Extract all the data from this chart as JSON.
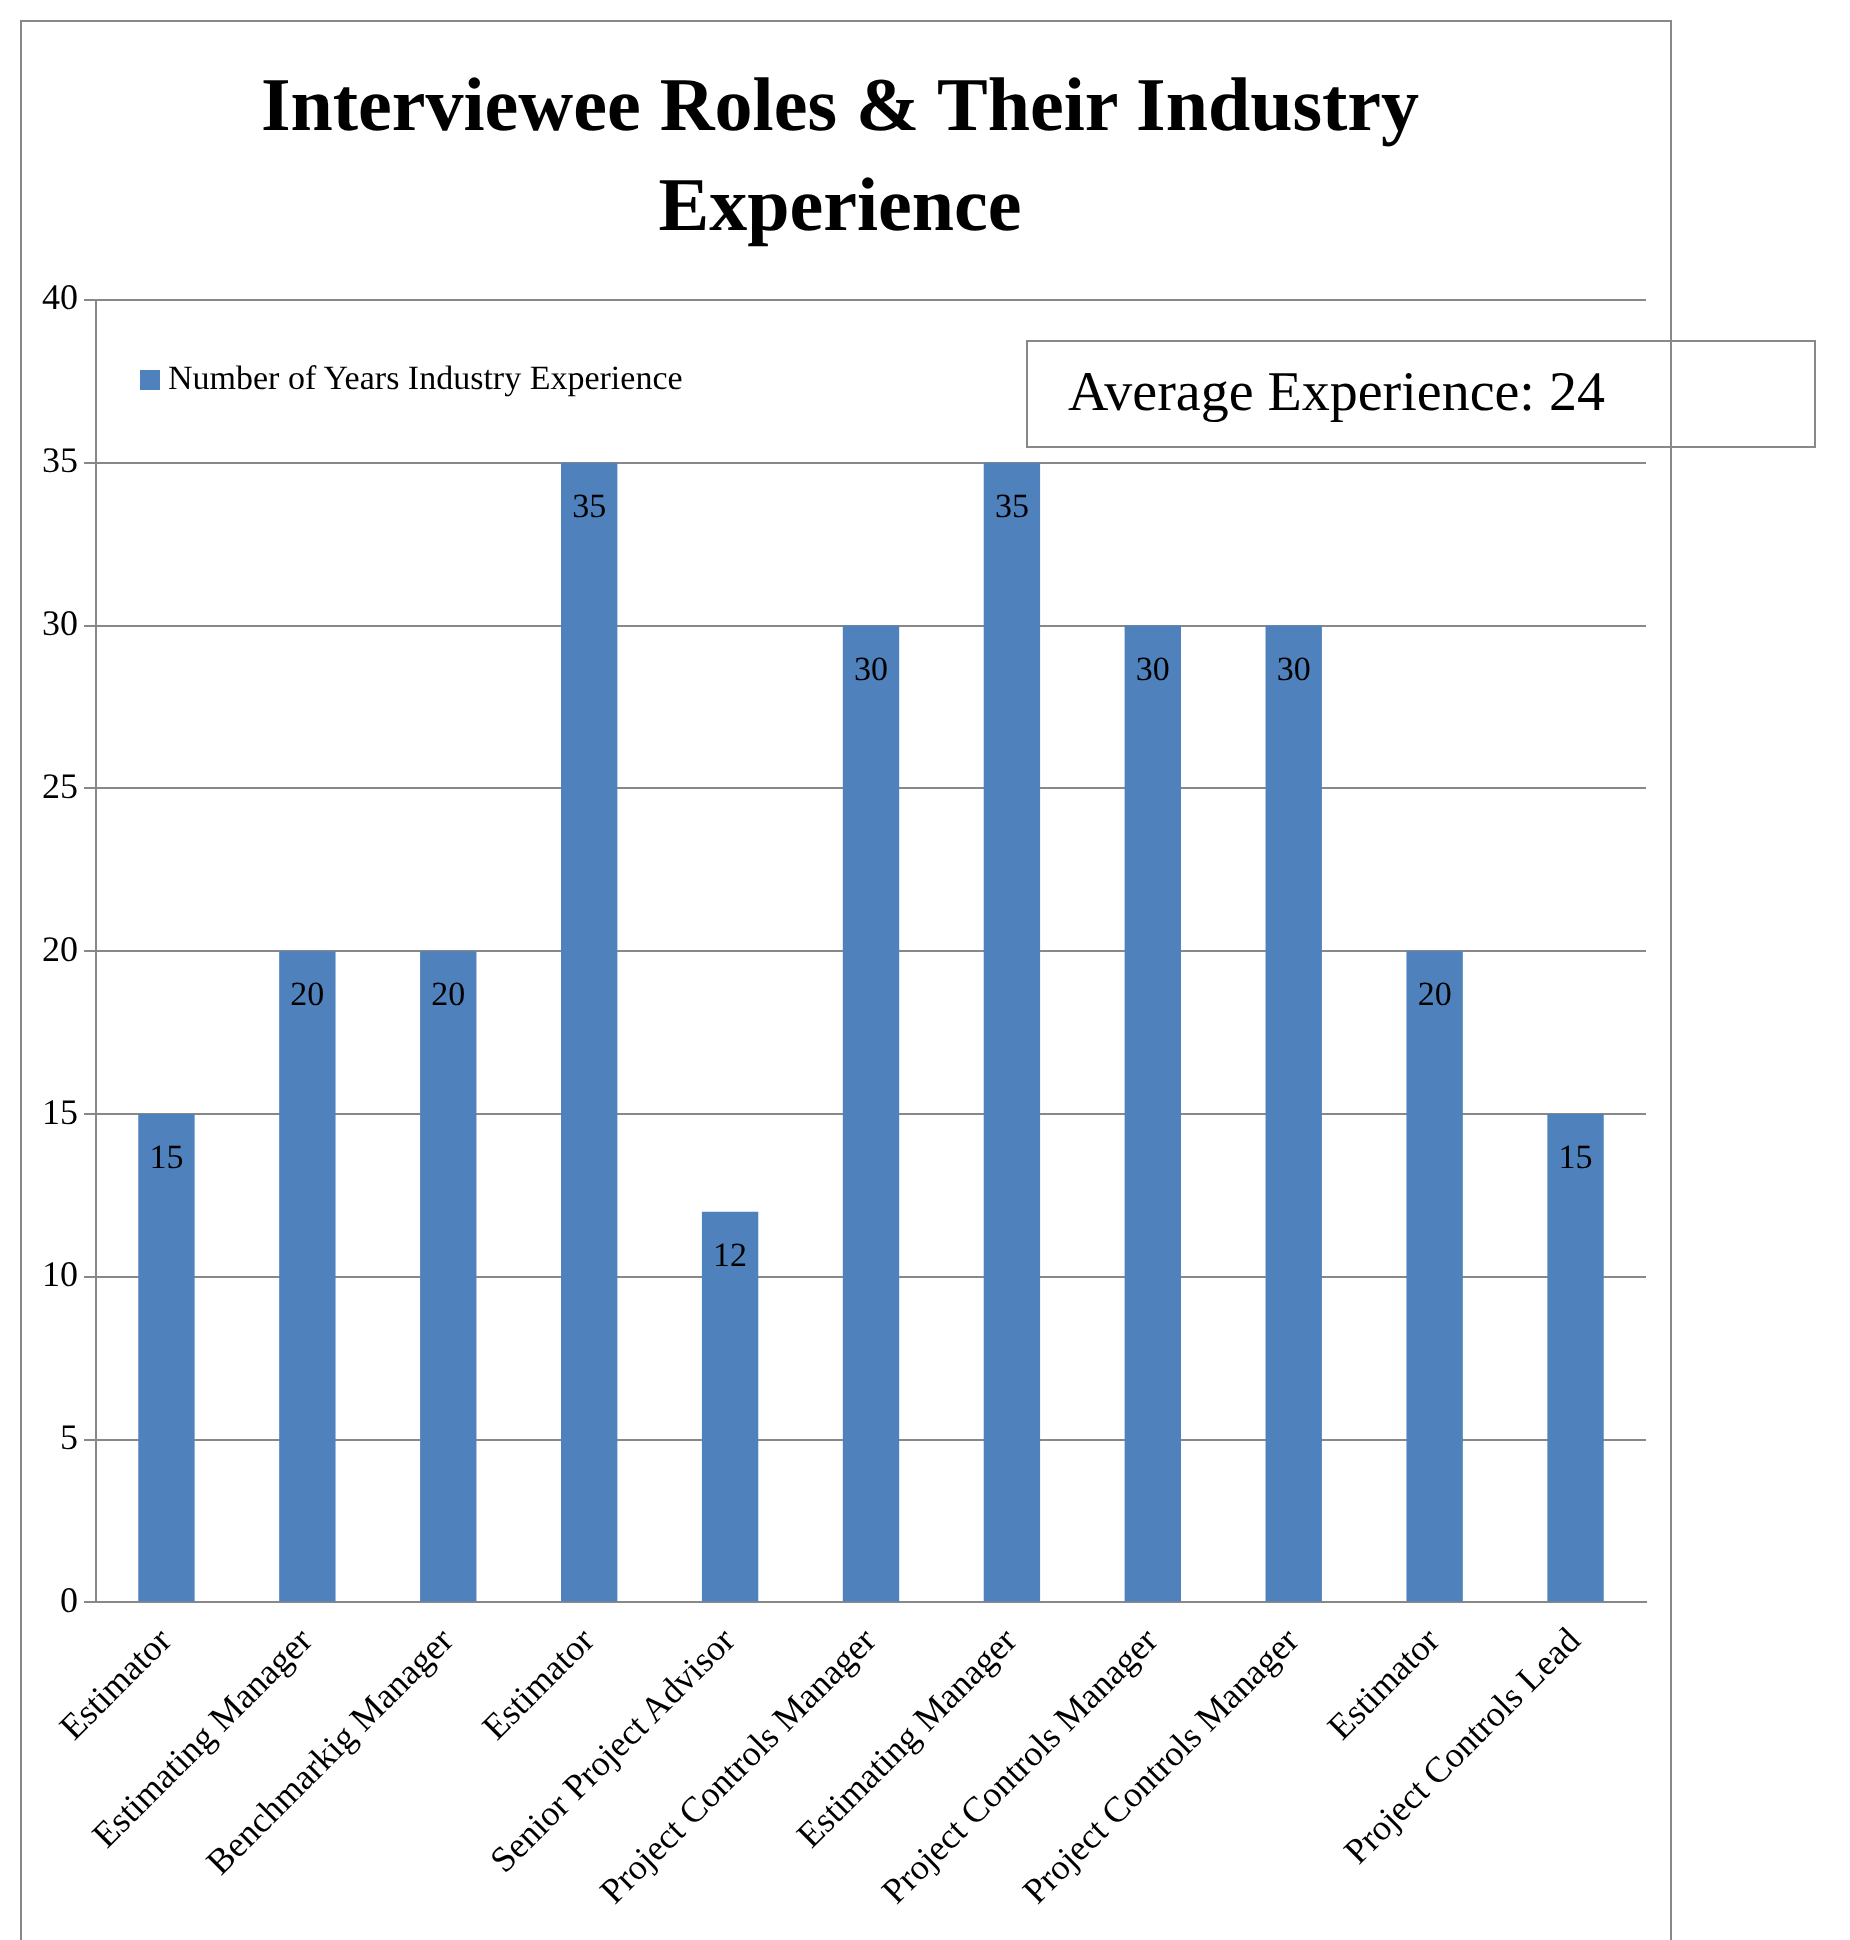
{
  "chart_data": {
    "type": "bar",
    "title": "Interviewee Roles & Their Industry Experience",
    "categories": [
      "Estimator",
      "Estimating Manager",
      "Benchmarkig Manager",
      "Estimator",
      "Senior Project Advisor",
      "Project Controls Manager",
      "Estimating Manager",
      "Project Controls Manager",
      "Project Controls Manager",
      "Estimator",
      "Project Controls Lead"
    ],
    "series": [
      {
        "name": "Number of Years Industry Experience",
        "color": "#4f81bd",
        "values": [
          15,
          20,
          20,
          35,
          12,
          30,
          35,
          30,
          30,
          20,
          15
        ]
      }
    ],
    "ylim": [
      0,
      40
    ],
    "yticks": [
      0,
      5,
      10,
      15,
      20,
      25,
      30,
      35,
      40
    ],
    "grid": "y",
    "legend": "top left",
    "data_labels": true,
    "annotations": [
      "Average Experience:  24"
    ]
  }
}
